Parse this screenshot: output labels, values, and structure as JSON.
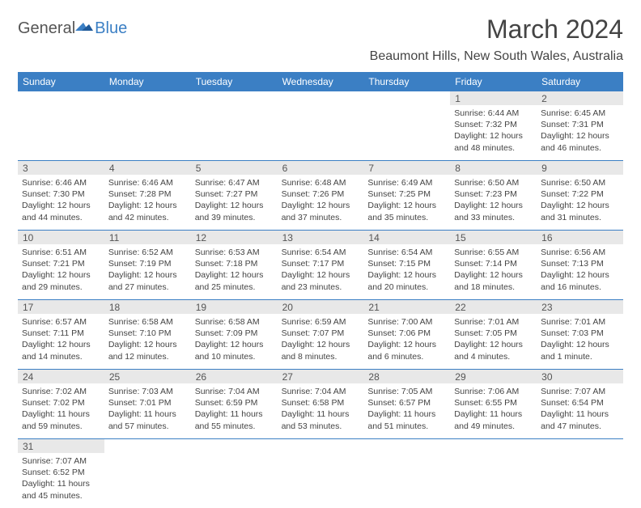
{
  "logo": {
    "text1": "General",
    "text2": "Blue"
  },
  "title": "March 2024",
  "location": "Beaumont Hills, New South Wales, Australia",
  "brand_color": "#3b7fc4",
  "header_bg": "#3b7fc4",
  "day_num_bg": "#e8e8e8",
  "text_color": "#444444",
  "day_headers": [
    "Sunday",
    "Monday",
    "Tuesday",
    "Wednesday",
    "Thursday",
    "Friday",
    "Saturday"
  ],
  "weeks": [
    {
      "days": [
        null,
        null,
        null,
        null,
        null,
        {
          "n": "1",
          "sunrise": "Sunrise: 6:44 AM",
          "sunset": "Sunset: 7:32 PM",
          "d1": "Daylight: 12 hours",
          "d2": "and 48 minutes."
        },
        {
          "n": "2",
          "sunrise": "Sunrise: 6:45 AM",
          "sunset": "Sunset: 7:31 PM",
          "d1": "Daylight: 12 hours",
          "d2": "and 46 minutes."
        }
      ]
    },
    {
      "days": [
        {
          "n": "3",
          "sunrise": "Sunrise: 6:46 AM",
          "sunset": "Sunset: 7:30 PM",
          "d1": "Daylight: 12 hours",
          "d2": "and 44 minutes."
        },
        {
          "n": "4",
          "sunrise": "Sunrise: 6:46 AM",
          "sunset": "Sunset: 7:28 PM",
          "d1": "Daylight: 12 hours",
          "d2": "and 42 minutes."
        },
        {
          "n": "5",
          "sunrise": "Sunrise: 6:47 AM",
          "sunset": "Sunset: 7:27 PM",
          "d1": "Daylight: 12 hours",
          "d2": "and 39 minutes."
        },
        {
          "n": "6",
          "sunrise": "Sunrise: 6:48 AM",
          "sunset": "Sunset: 7:26 PM",
          "d1": "Daylight: 12 hours",
          "d2": "and 37 minutes."
        },
        {
          "n": "7",
          "sunrise": "Sunrise: 6:49 AM",
          "sunset": "Sunset: 7:25 PM",
          "d1": "Daylight: 12 hours",
          "d2": "and 35 minutes."
        },
        {
          "n": "8",
          "sunrise": "Sunrise: 6:50 AM",
          "sunset": "Sunset: 7:23 PM",
          "d1": "Daylight: 12 hours",
          "d2": "and 33 minutes."
        },
        {
          "n": "9",
          "sunrise": "Sunrise: 6:50 AM",
          "sunset": "Sunset: 7:22 PM",
          "d1": "Daylight: 12 hours",
          "d2": "and 31 minutes."
        }
      ]
    },
    {
      "days": [
        {
          "n": "10",
          "sunrise": "Sunrise: 6:51 AM",
          "sunset": "Sunset: 7:21 PM",
          "d1": "Daylight: 12 hours",
          "d2": "and 29 minutes."
        },
        {
          "n": "11",
          "sunrise": "Sunrise: 6:52 AM",
          "sunset": "Sunset: 7:19 PM",
          "d1": "Daylight: 12 hours",
          "d2": "and 27 minutes."
        },
        {
          "n": "12",
          "sunrise": "Sunrise: 6:53 AM",
          "sunset": "Sunset: 7:18 PM",
          "d1": "Daylight: 12 hours",
          "d2": "and 25 minutes."
        },
        {
          "n": "13",
          "sunrise": "Sunrise: 6:54 AM",
          "sunset": "Sunset: 7:17 PM",
          "d1": "Daylight: 12 hours",
          "d2": "and 23 minutes."
        },
        {
          "n": "14",
          "sunrise": "Sunrise: 6:54 AM",
          "sunset": "Sunset: 7:15 PM",
          "d1": "Daylight: 12 hours",
          "d2": "and 20 minutes."
        },
        {
          "n": "15",
          "sunrise": "Sunrise: 6:55 AM",
          "sunset": "Sunset: 7:14 PM",
          "d1": "Daylight: 12 hours",
          "d2": "and 18 minutes."
        },
        {
          "n": "16",
          "ненrise": "",
          "sunrise": "Sunrise: 6:56 AM",
          "sunset": "Sunset: 7:13 PM",
          "d1": "Daylight: 12 hours",
          "d2": "and 16 minutes."
        }
      ]
    },
    {
      "days": [
        {
          "n": "17",
          "sunrise": "Sunrise: 6:57 AM",
          "sunset": "Sunset: 7:11 PM",
          "d1": "Daylight: 12 hours",
          "d2": "and 14 minutes."
        },
        {
          "n": "18",
          "sunrise": "Sunrise: 6:58 AM",
          "sunset": "Sunset: 7:10 PM",
          "d1": "Daylight: 12 hours",
          "d2": "and 12 minutes."
        },
        {
          "n": "19",
          "sunrise": "Sunrise: 6:58 AM",
          "sunset": "Sunset: 7:09 PM",
          "d1": "Daylight: 12 hours",
          "d2": "and 10 minutes."
        },
        {
          "n": "20",
          "sunrise": "Sunrise: 6:59 AM",
          "sunset": "Sunset: 7:07 PM",
          "d1": "Daylight: 12 hours",
          "d2": "and 8 minutes."
        },
        {
          "n": "21",
          "sunrise": "Sunrise: 7:00 AM",
          "sunset": "Sunset: 7:06 PM",
          "d1": "Daylight: 12 hours",
          "d2": "and 6 minutes."
        },
        {
          "n": "22",
          "sunrise": "Sunrise: 7:01 AM",
          "sunset": "Sunset: 7:05 PM",
          "d1": "Daylight: 12 hours",
          "d2": "and 4 minutes."
        },
        {
          "n": "23",
          "sunrise": "Sunrise: 7:01 AM",
          "sunset": "Sunset: 7:03 PM",
          "d1": "Daylight: 12 hours",
          "d2": "and 1 minute."
        }
      ]
    },
    {
      "days": [
        {
          "n": "24",
          "sunrise": "Sunrise: 7:02 AM",
          "sunset": "Sunset: 7:02 PM",
          "d1": "Daylight: 11 hours",
          "d2": "and 59 minutes."
        },
        {
          "n": "25",
          "sunrise": "Sunrise: 7:03 AM",
          "sunset": "Sunset: 7:01 PM",
          "d1": "Daylight: 11 hours",
          "d2": "and 57 minutes."
        },
        {
          "n": "26",
          "sunrise": "Sunrise: 7:04 AM",
          "sunset": "Sunset: 6:59 PM",
          "d1": "Daylight: 11 hours",
          "d2": "and 55 minutes."
        },
        {
          "n": "27",
          "sunrise": "Sunrise: 7:04 AM",
          "sunset": "Sunset: 6:58 PM",
          "d1": "Daylight: 11 hours",
          "d2": "and 53 minutes."
        },
        {
          "n": "28",
          "sunrise": "Sunrise: 7:05 AM",
          "sunset": "Sunset: 6:57 PM",
          "d1": "Daylight: 11 hours",
          "d2": "and 51 minutes."
        },
        {
          "n": "29",
          "sunrise": "Sunrise: 7:06 AM",
          "sunset": "Sunset: 6:55 PM",
          "d1": "Daylight: 11 hours",
          "d2": "and 49 minutes."
        },
        {
          "n": "30",
          "sunrise": "Sunrise: 7:07 AM",
          "sunset": "Sunset: 6:54 PM",
          "d1": "Daylight: 11 hours",
          "d2": "and 47 minutes."
        }
      ]
    },
    {
      "days": [
        {
          "n": "31",
          "sunrise": "Sunrise: 7:07 AM",
          "sunset": "Sunset: 6:52 PM",
          "d1": "Daylight: 11 hours",
          "d2": "and 45 minutes."
        },
        null,
        null,
        null,
        null,
        null,
        null
      ]
    }
  ]
}
